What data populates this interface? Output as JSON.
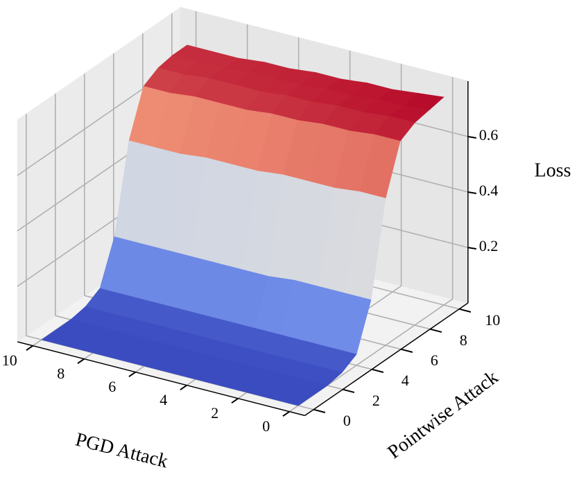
{
  "chart_data": {
    "type": "surface",
    "xlabel": "PGD Attack",
    "ylabel": "Pointwise Attack",
    "zlabel": "Loss",
    "x": [
      0,
      1,
      2,
      3,
      4,
      5,
      6,
      7,
      8,
      9,
      10
    ],
    "y": [
      0,
      1,
      2,
      3,
      4,
      5,
      6,
      7,
      8,
      9,
      10
    ],
    "z": [
      [
        0,
        0,
        0,
        0,
        0,
        0,
        0,
        0,
        0,
        0,
        0
      ],
      [
        0,
        0,
        0,
        0,
        0,
        0,
        0,
        0,
        0,
        0,
        0
      ],
      [
        0,
        0,
        0,
        0,
        0,
        0,
        0,
        0,
        0,
        0,
        0
      ],
      [
        0.01,
        0.01,
        0.01,
        0.01,
        0.01,
        0.01,
        0.01,
        0.01,
        0.01,
        0.01,
        0.01
      ],
      [
        0.04,
        0.04,
        0.04,
        0.04,
        0.04,
        0.04,
        0.04,
        0.04,
        0.04,
        0.04,
        0.04
      ],
      [
        0.2,
        0.2,
        0.2,
        0.2,
        0.19,
        0.19,
        0.19,
        0.19,
        0.19,
        0.19,
        0.19
      ],
      [
        0.53,
        0.53,
        0.52,
        0.52,
        0.52,
        0.51,
        0.51,
        0.51,
        0.5,
        0.5,
        0.5
      ],
      [
        0.7,
        0.7,
        0.69,
        0.69,
        0.68,
        0.68,
        0.67,
        0.67,
        0.67,
        0.66,
        0.66
      ],
      [
        0.73,
        0.73,
        0.72,
        0.72,
        0.71,
        0.71,
        0.7,
        0.7,
        0.7,
        0.69,
        0.69
      ],
      [
        0.74,
        0.73,
        0.73,
        0.72,
        0.72,
        0.71,
        0.71,
        0.71,
        0.7,
        0.7,
        0.7
      ],
      [
        0.75,
        0.74,
        0.73,
        0.73,
        0.72,
        0.72,
        0.71,
        0.71,
        0.7,
        0.7,
        0.7
      ]
    ],
    "xlim": [
      0,
      10
    ],
    "ylim": [
      0,
      10
    ],
    "zlim": [
      0,
      0.8
    ],
    "xticks": [
      0,
      2,
      4,
      6,
      8,
      10
    ],
    "yticks": [
      0,
      2,
      4,
      6,
      8,
      10
    ],
    "zticks": [
      0.2,
      0.4,
      0.6
    ],
    "colormap": "coolwarm",
    "grid": true
  }
}
